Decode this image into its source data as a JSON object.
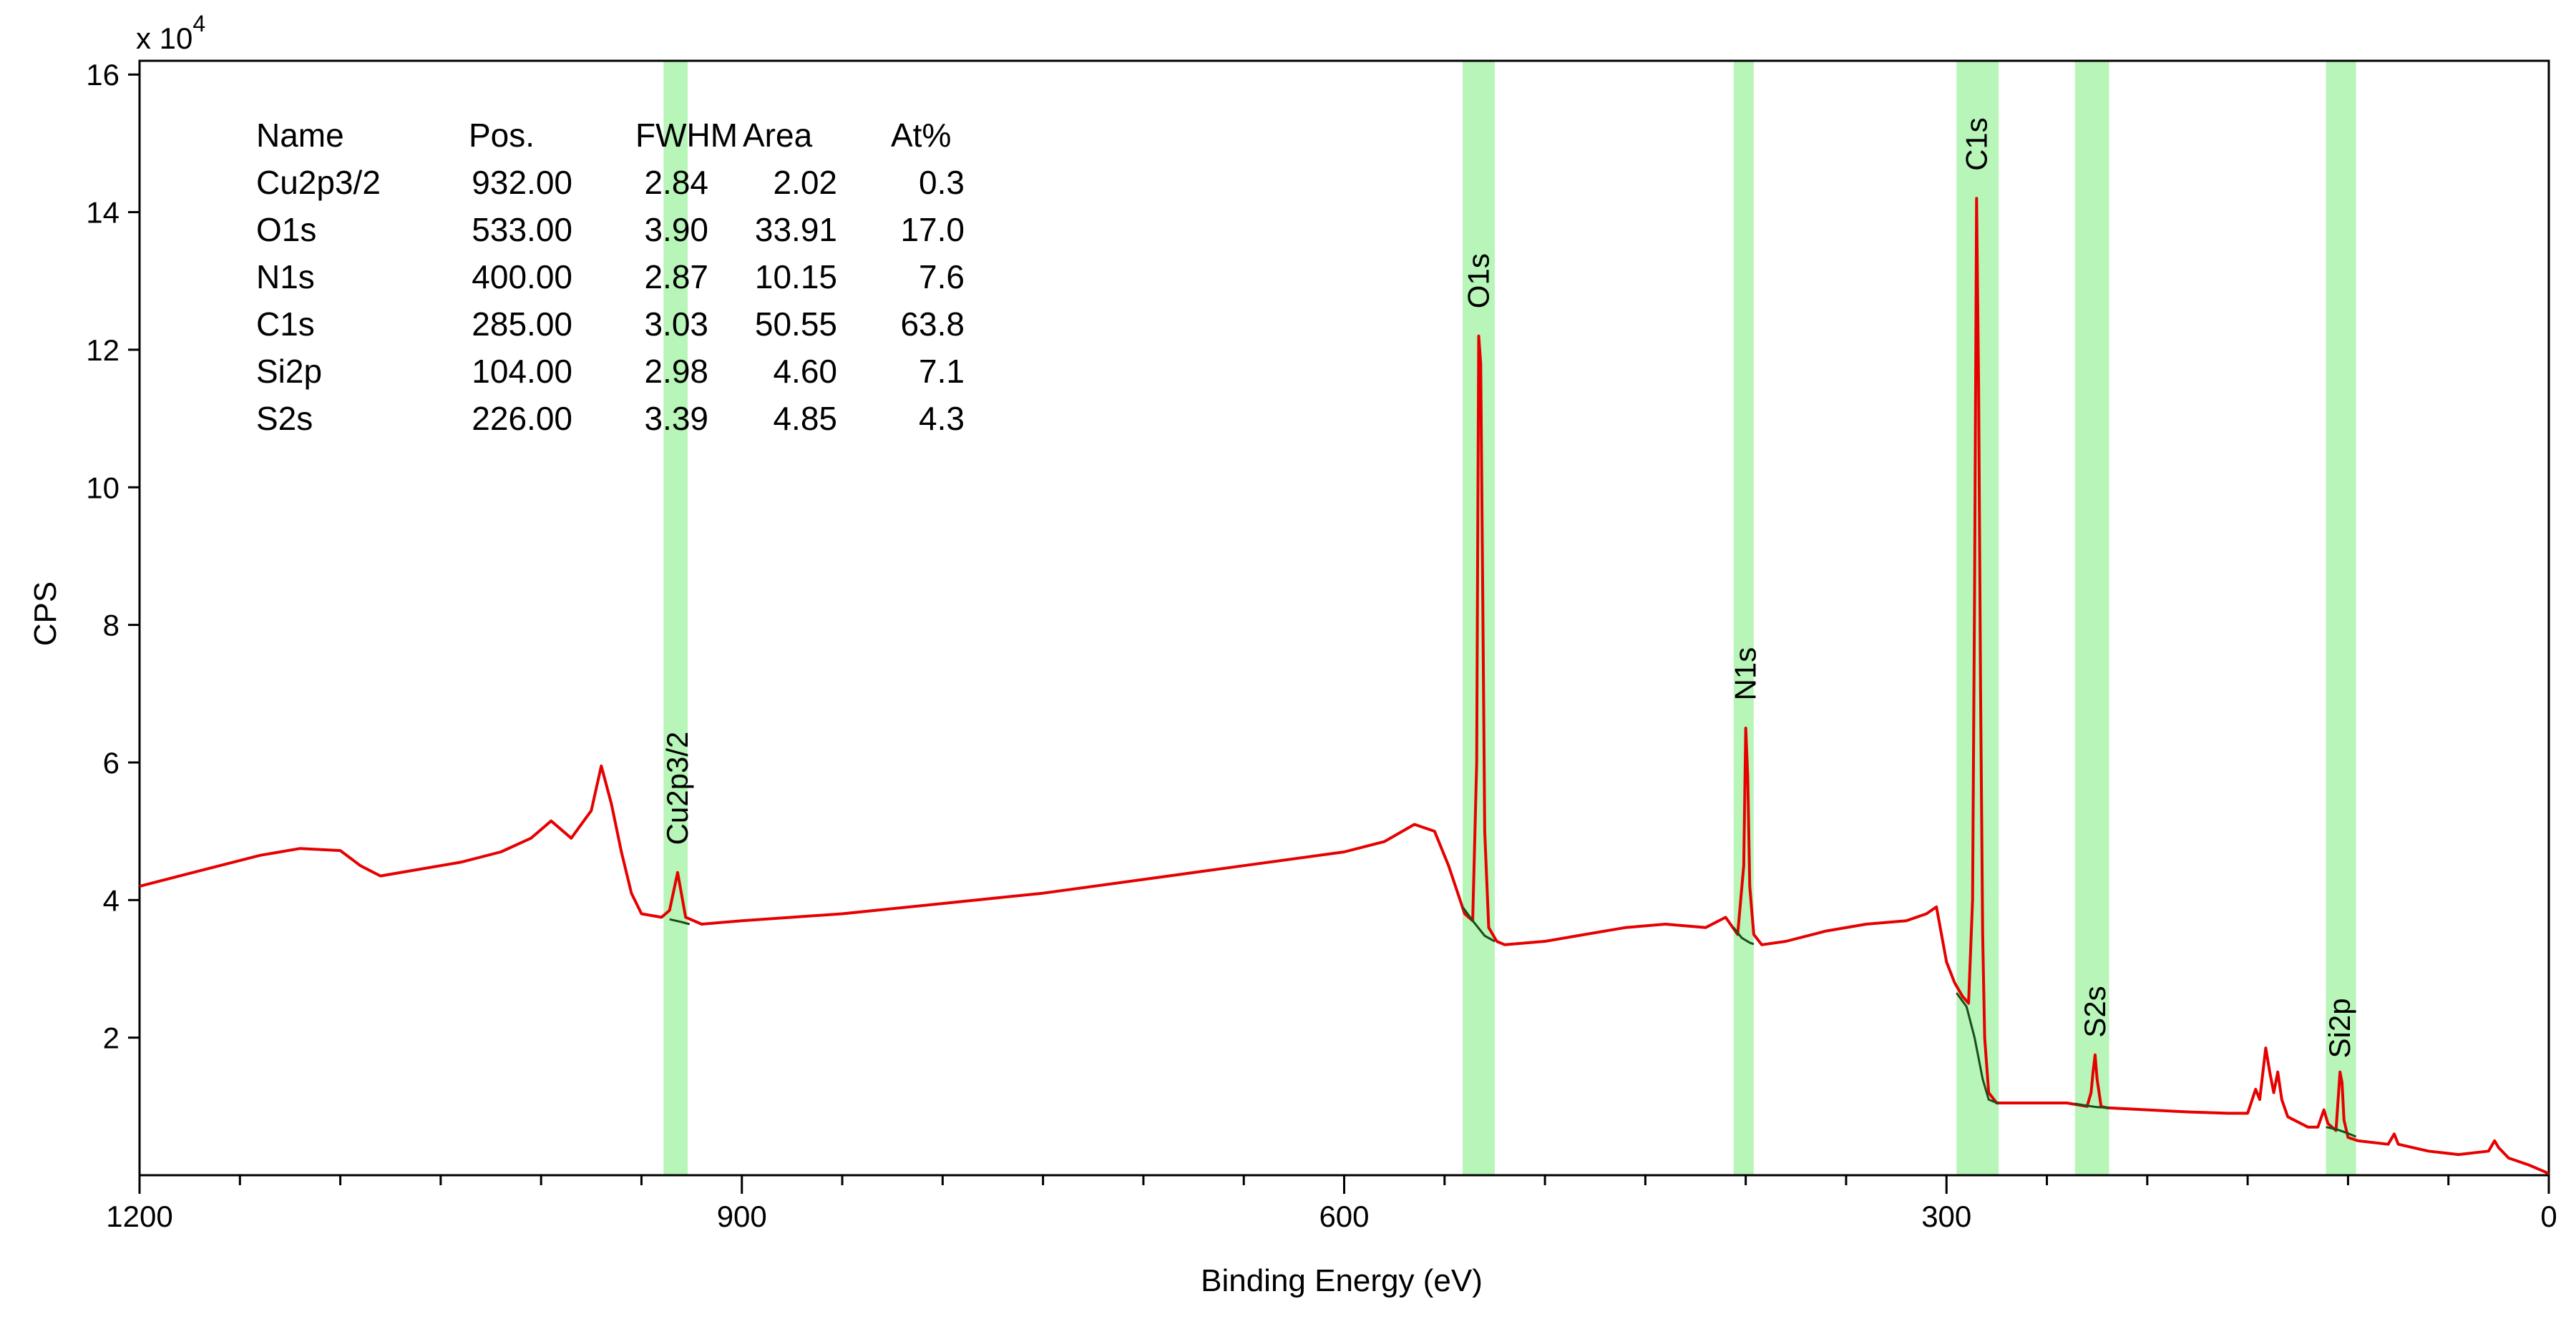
{
  "chart_data": {
    "type": "line",
    "title": "",
    "xlabel": "Binding Energy (eV)",
    "ylabel": "CPS",
    "y_multiplier_label": "x 10",
    "y_multiplier_exponent": "4",
    "xlim": [
      1200,
      0
    ],
    "x_reversed": true,
    "ylim": [
      0,
      162000
    ],
    "x_ticks": [
      1200,
      900,
      600,
      300,
      0
    ],
    "x_minor_step": 50,
    "y_ticks": [
      20000,
      40000,
      60000,
      80000,
      100000,
      120000,
      140000,
      160000
    ],
    "y_tick_labels": [
      "2",
      "4",
      "6",
      "8",
      "10",
      "12",
      "14",
      "16"
    ],
    "grid": false,
    "colors": {
      "spectrum": "#e60000",
      "background_line": "#1a4d1a",
      "region_fill": "#b8f5b8"
    },
    "table": {
      "headers": [
        "Name",
        "Pos.",
        "FWHM",
        "Area",
        "At%"
      ],
      "rows": [
        [
          "Cu2p3/2",
          "932.00",
          "2.84",
          "2.02",
          "0.3"
        ],
        [
          "O1s",
          "533.00",
          "3.90",
          "33.91",
          "17.0"
        ],
        [
          "N1s",
          "400.00",
          "2.87",
          "10.15",
          "7.6"
        ],
        [
          "C1s",
          "285.00",
          "3.03",
          "50.55",
          "63.8"
        ],
        [
          "Si2p",
          "104.00",
          "2.98",
          "4.60",
          "7.1"
        ],
        [
          "S2s",
          "226.00",
          "3.39",
          "4.85",
          "4.3"
        ]
      ]
    },
    "regions": [
      {
        "name": "Cu2p3/2",
        "start": 939,
        "end": 927
      },
      {
        "name": "O1s",
        "start": 541,
        "end": 525
      },
      {
        "name": "N1s",
        "start": 406,
        "end": 396
      },
      {
        "name": "C1s",
        "start": 295,
        "end": 274
      },
      {
        "name": "S2s",
        "start": 236,
        "end": 219
      },
      {
        "name": "Si2p",
        "start": 111,
        "end": 96
      }
    ],
    "peak_labels": [
      {
        "text": "Cu2p3/2",
        "x": 932,
        "y": 48000
      },
      {
        "text": "O1s",
        "x": 533,
        "y": 126000
      },
      {
        "text": "N1s",
        "x": 400,
        "y": 69000
      },
      {
        "text": "C1s",
        "x": 285,
        "y": 146000
      },
      {
        "text": "S2s",
        "x": 226,
        "y": 20000
      },
      {
        "text": "Si2p",
        "x": 104,
        "y": 17000
      }
    ],
    "series": [
      {
        "points": [
          [
            1200,
            42000
          ],
          [
            1180,
            43500
          ],
          [
            1160,
            45000
          ],
          [
            1140,
            46500
          ],
          [
            1120,
            47500
          ],
          [
            1100,
            47200
          ],
          [
            1090,
            45000
          ],
          [
            1080,
            43500
          ],
          [
            1060,
            44500
          ],
          [
            1040,
            45500
          ],
          [
            1020,
            47000
          ],
          [
            1005,
            49000
          ],
          [
            995,
            51500
          ],
          [
            985,
            49000
          ],
          [
            975,
            53000
          ],
          [
            970,
            59500
          ],
          [
            965,
            54000
          ],
          [
            960,
            47000
          ],
          [
            955,
            41000
          ],
          [
            950,
            38000
          ],
          [
            940,
            37500
          ],
          [
            936,
            38500
          ],
          [
            932,
            44000
          ],
          [
            928,
            37500
          ],
          [
            920,
            36500
          ],
          [
            900,
            37000
          ],
          [
            850,
            38000
          ],
          [
            800,
            39500
          ],
          [
            750,
            41000
          ],
          [
            700,
            43000
          ],
          [
            650,
            45000
          ],
          [
            600,
            47000
          ],
          [
            580,
            48500
          ],
          [
            565,
            51000
          ],
          [
            555,
            50000
          ],
          [
            548,
            45000
          ],
          [
            540,
            38000
          ],
          [
            536,
            37000
          ],
          [
            534,
            60000
          ],
          [
            533,
            122000
          ],
          [
            532,
            118000
          ],
          [
            531,
            85000
          ],
          [
            530,
            50000
          ],
          [
            528,
            36000
          ],
          [
            524,
            34000
          ],
          [
            520,
            33500
          ],
          [
            500,
            34000
          ],
          [
            480,
            35000
          ],
          [
            460,
            36000
          ],
          [
            440,
            36500
          ],
          [
            420,
            36000
          ],
          [
            410,
            37500
          ],
          [
            404,
            35000
          ],
          [
            401,
            45000
          ],
          [
            400,
            65000
          ],
          [
            399,
            58000
          ],
          [
            398,
            42000
          ],
          [
            396,
            35000
          ],
          [
            392,
            33500
          ],
          [
            380,
            34000
          ],
          [
            360,
            35500
          ],
          [
            340,
            36500
          ],
          [
            320,
            37000
          ],
          [
            310,
            38000
          ],
          [
            305,
            39000
          ],
          [
            300,
            31000
          ],
          [
            296,
            28000
          ],
          [
            292,
            26000
          ],
          [
            289,
            25000
          ],
          [
            287,
            40000
          ],
          [
            286,
            85000
          ],
          [
            285,
            142000
          ],
          [
            284,
            115000
          ],
          [
            283,
            70000
          ],
          [
            282,
            35000
          ],
          [
            281,
            20000
          ],
          [
            279,
            12000
          ],
          [
            275,
            10500
          ],
          [
            260,
            10500
          ],
          [
            240,
            10500
          ],
          [
            230,
            10000
          ],
          [
            228,
            12000
          ],
          [
            227,
            15000
          ],
          [
            226,
            17500
          ],
          [
            225,
            14000
          ],
          [
            223,
            10000
          ],
          [
            220,
            9800
          ],
          [
            200,
            9500
          ],
          [
            180,
            9200
          ],
          [
            160,
            9000
          ],
          [
            150,
            9000
          ],
          [
            146,
            12500
          ],
          [
            144,
            11000
          ],
          [
            141,
            18500
          ],
          [
            139,
            15000
          ],
          [
            137,
            12000
          ],
          [
            135,
            15000
          ],
          [
            133,
            11000
          ],
          [
            130,
            8500
          ],
          [
            120,
            7000
          ],
          [
            115,
            7000
          ],
          [
            112,
            9500
          ],
          [
            110,
            7500
          ],
          [
            106,
            6500
          ],
          [
            104,
            15000
          ],
          [
            103,
            13500
          ],
          [
            102,
            8000
          ],
          [
            100,
            5500
          ],
          [
            95,
            5000
          ],
          [
            80,
            4500
          ],
          [
            77,
            6000
          ],
          [
            75,
            4500
          ],
          [
            60,
            3500
          ],
          [
            45,
            3000
          ],
          [
            30,
            3500
          ],
          [
            27,
            5000
          ],
          [
            25,
            4000
          ],
          [
            20,
            2500
          ],
          [
            10,
            1500
          ],
          [
            2,
            500
          ],
          [
            0,
            200
          ]
        ]
      },
      {
        "points": [
          [
            936,
            37200
          ],
          [
            930,
            36800
          ],
          [
            926,
            36500
          ],
          [
            541,
            39000
          ],
          [
            536,
            37000
          ],
          [
            530,
            34800
          ],
          [
            525,
            34000
          ],
          [
            406,
            36000
          ],
          [
            402,
            34500
          ],
          [
            398,
            33800
          ],
          [
            396,
            33600
          ],
          [
            295,
            26500
          ],
          [
            290,
            24500
          ],
          [
            286,
            20000
          ],
          [
            282,
            14000
          ],
          [
            279,
            11000
          ],
          [
            274,
            10400
          ],
          [
            236,
            10400
          ],
          [
            230,
            10100
          ],
          [
            225,
            9900
          ],
          [
            219,
            9800
          ],
          [
            111,
            7000
          ],
          [
            106,
            6700
          ],
          [
            101,
            6200
          ],
          [
            96,
            5600
          ]
        ],
        "segments": [
          [
            0,
            3
          ],
          [
            3,
            7
          ],
          [
            7,
            11
          ],
          [
            11,
            17
          ],
          [
            17,
            21
          ],
          [
            21,
            25
          ]
        ]
      }
    ]
  }
}
